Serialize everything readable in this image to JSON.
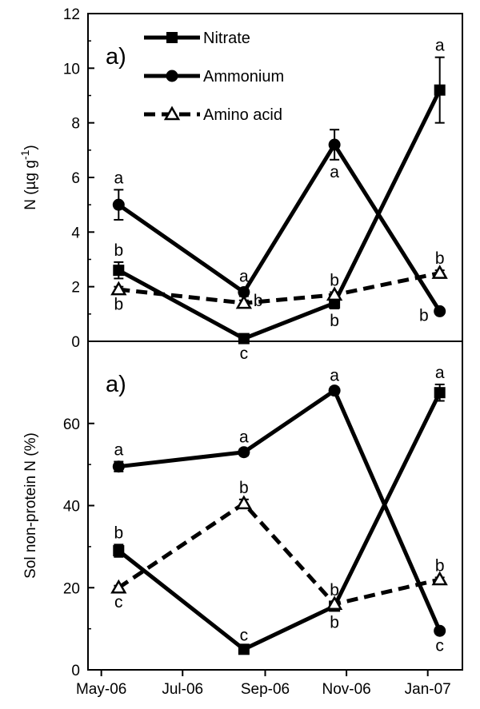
{
  "chart_data": [
    {
      "type": "line",
      "panel_label": "a)",
      "ylabel_main": "N (µg g",
      "ylabel_sup": "-1",
      "ylabel_close": ")",
      "ylim": [
        0,
        12
      ],
      "yticks": [
        0,
        2,
        4,
        6,
        8,
        10,
        12
      ],
      "legend": {
        "placement": "top-center"
      },
      "series": [
        {
          "name": "Nitrate",
          "marker": "square",
          "dash": false,
          "x": [
            "2006-05-14",
            "2006-08-16",
            "2006-10-23",
            "2007-01-10"
          ],
          "y": [
            2.6,
            0.1,
            1.4,
            9.2
          ],
          "err": [
            0.3,
            0.1,
            0.2,
            1.2
          ],
          "labels": [
            "b",
            "c",
            "b",
            "a"
          ],
          "label_pos": [
            "above",
            "below",
            "below",
            "above"
          ]
        },
        {
          "name": "Ammonium",
          "marker": "circle",
          "dash": false,
          "x": [
            "2006-05-14",
            "2006-08-16",
            "2006-10-23",
            "2007-01-10"
          ],
          "y": [
            5.0,
            1.8,
            7.2,
            1.1
          ],
          "err": [
            0.55,
            0.15,
            0.55,
            0.1
          ],
          "labels": [
            "a",
            "a",
            "a",
            "b"
          ],
          "label_pos": [
            "above",
            "above",
            "below",
            "left"
          ]
        },
        {
          "name": "Amino acid",
          "marker": "triangle",
          "dash": true,
          "x": [
            "2006-05-14",
            "2006-08-16",
            "2006-10-23",
            "2007-01-10"
          ],
          "y": [
            1.9,
            1.4,
            1.7,
            2.5
          ],
          "err": [
            0.1,
            0.1,
            0.1,
            0.1
          ],
          "labels": [
            "b",
            "b",
            "b",
            "b"
          ],
          "label_pos": [
            "below",
            "right",
            "above",
            "above"
          ]
        }
      ]
    },
    {
      "type": "line",
      "panel_label": "a)",
      "ylabel": "Sol non-protein N (%)",
      "ylim": [
        0,
        80
      ],
      "yticks": [
        0,
        20,
        40,
        60
      ],
      "xticks": [
        "2006-05-01",
        "2006-07-01",
        "2006-09-01",
        "2006-11-01",
        "2007-01-01"
      ],
      "xtick_labels": [
        "May-06",
        "Jul-06",
        "Sep-06",
        "Nov-06",
        "Jan-07"
      ],
      "series": [
        {
          "name": "Nitrate",
          "marker": "square",
          "dash": false,
          "x": [
            "2006-05-14",
            "2006-08-16",
            "2006-10-23",
            "2007-01-10"
          ],
          "y": [
            29,
            5,
            15.5,
            67.5
          ],
          "err": [
            1.5,
            0.5,
            1,
            2
          ],
          "labels": [
            "b",
            "c",
            "b",
            "a"
          ],
          "label_pos": [
            "above",
            "above",
            "below",
            "above"
          ]
        },
        {
          "name": "Ammonium",
          "marker": "circle",
          "dash": false,
          "x": [
            "2006-05-14",
            "2006-08-16",
            "2006-10-23",
            "2007-01-10"
          ],
          "y": [
            49.5,
            53,
            68,
            9.5
          ],
          "err": [
            1.2,
            0.8,
            0.8,
            0.6
          ],
          "labels": [
            "a",
            "a",
            "a",
            "c"
          ],
          "label_pos": [
            "above",
            "above",
            "above",
            "below"
          ]
        },
        {
          "name": "Amino acid",
          "marker": "triangle",
          "dash": true,
          "x": [
            "2006-05-14",
            "2006-08-16",
            "2006-10-23",
            "2007-01-10"
          ],
          "y": [
            20,
            40.5,
            16,
            22
          ],
          "err": [
            0.5,
            1,
            0.5,
            0.5
          ],
          "labels": [
            "c",
            "b",
            "b",
            "b"
          ],
          "label_pos": [
            "below",
            "above",
            "above",
            "above"
          ]
        }
      ]
    }
  ]
}
